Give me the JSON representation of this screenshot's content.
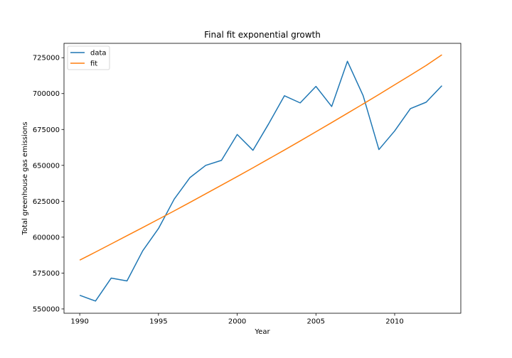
{
  "chart_data": {
    "type": "line",
    "title": "Final fit exponential growth",
    "xlabel": "Year",
    "ylabel": "Total greenhouse gas emissions",
    "xlim": [
      1989.0,
      2014.2
    ],
    "ylim": [
      547000,
      735000
    ],
    "x_ticks": [
      1990,
      1995,
      2000,
      2005,
      2010
    ],
    "y_ticks": [
      550000,
      575000,
      600000,
      625000,
      650000,
      675000,
      700000,
      725000
    ],
    "grid": false,
    "legend_position": "top-left",
    "series": [
      {
        "name": "data",
        "color": "#1f77b4",
        "x": [
          1990,
          1991,
          1992,
          1993,
          1994,
          1995,
          1996,
          1997,
          1998,
          1999,
          2000,
          2001,
          2002,
          2003,
          2004,
          2005,
          2006,
          2007,
          2008,
          2009,
          2010,
          2011,
          2012,
          2013
        ],
        "values": [
          559500,
          555500,
          571500,
          569500,
          590500,
          606000,
          626500,
          641500,
          650000,
          653500,
          671500,
          660500,
          679000,
          698500,
          693500,
          705000,
          691000,
          722500,
          698500,
          661000,
          674000,
          689500,
          694000,
          705500
        ]
      },
      {
        "name": "fit",
        "color": "#ff7f0e",
        "x": [
          1990,
          1991,
          1992,
          1993,
          1994,
          1995,
          1996,
          1997,
          1998,
          1999,
          2000,
          2001,
          2002,
          2003,
          2004,
          2005,
          2006,
          2007,
          2008,
          2009,
          2010,
          2011,
          2012,
          2013
        ],
        "values": [
          584000,
          589600,
          595300,
          601000,
          606700,
          612500,
          618300,
          624200,
          630200,
          636200,
          642200,
          648300,
          654500,
          660700,
          667000,
          673400,
          679800,
          686300,
          692800,
          699400,
          706100,
          712800,
          719600,
          727000
        ]
      }
    ]
  }
}
